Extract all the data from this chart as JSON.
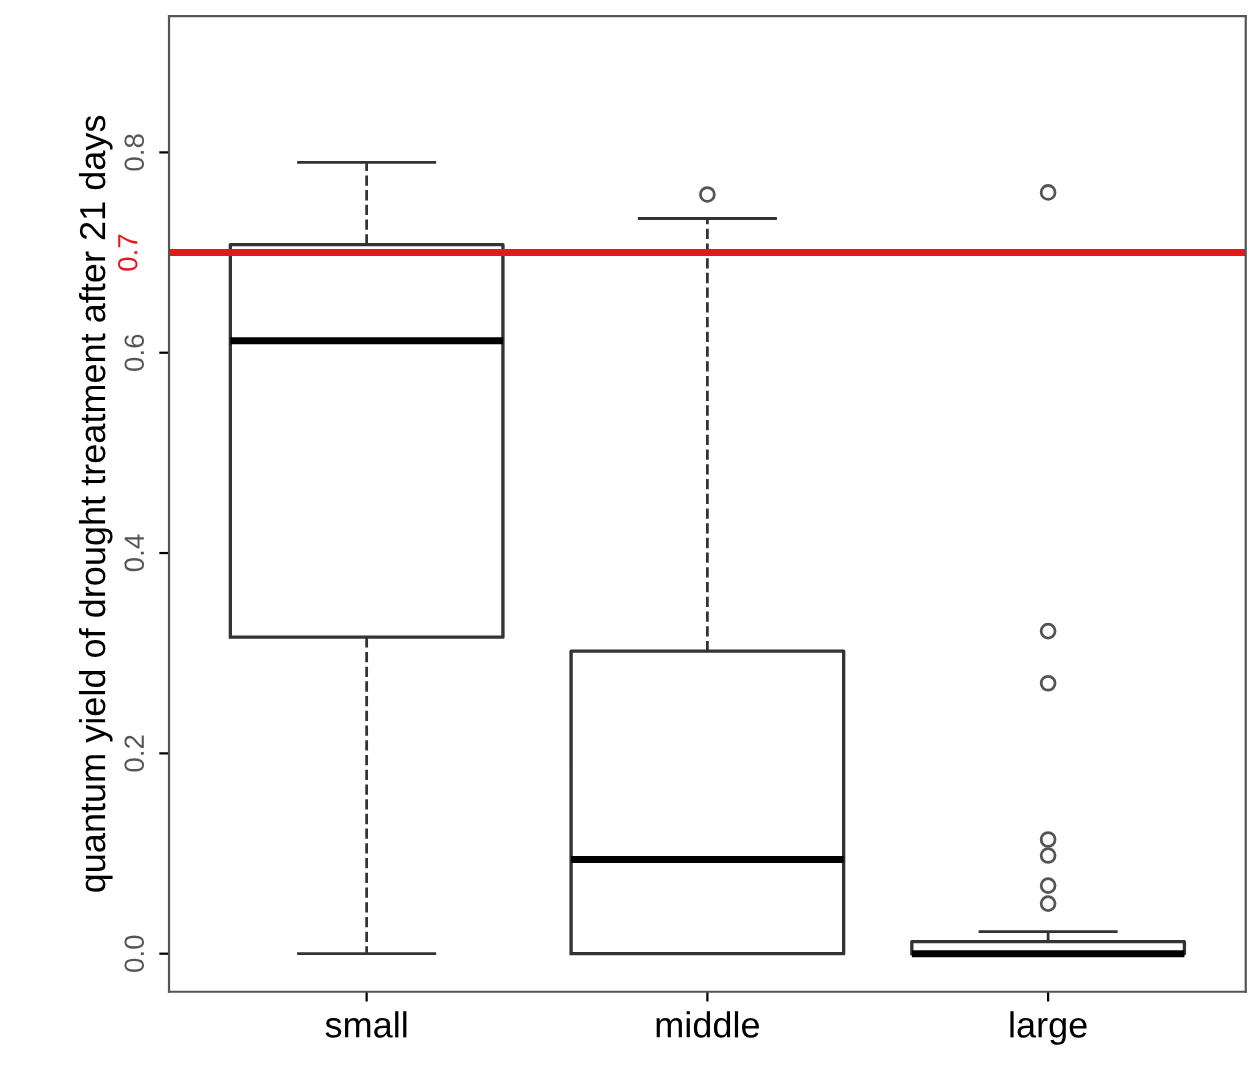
{
  "chart_data": {
    "type": "box",
    "ylabel": "quantum yield of drought treatment after 21 days",
    "categories": [
      "small",
      "middle",
      "large"
    ],
    "boxes": [
      {
        "low": 0.0,
        "q1": 0.316,
        "median": 0.612,
        "q3": 0.708,
        "high": 0.79
      },
      {
        "low": 0.0,
        "q1": 0.0,
        "median": 0.094,
        "q3": 0.302,
        "high": 0.734,
        "outliers": [
          0.758
        ]
      },
      {
        "low": 0.0,
        "q1": 0.0,
        "median": 0.0,
        "q3": 0.012,
        "high": 0.022,
        "outliers": [
          0.76,
          0.322,
          0.27,
          0.114,
          0.098,
          0.068,
          0.05
        ]
      }
    ],
    "ylim": [
      -0.038,
      0.936
    ],
    "yticks": [
      {
        "value": 0,
        "label": "0.0"
      },
      {
        "value": 0.2,
        "label": "0.2"
      },
      {
        "value": 0.4,
        "label": "0.4"
      },
      {
        "value": 0.6,
        "label": "0.6"
      },
      {
        "value": 0.8,
        "label": "0.8"
      }
    ],
    "ref_lines": [
      {
        "axis": "y",
        "value": 0.7,
        "label": "0.7",
        "color": "#e31a1c"
      }
    ],
    "grid": false
  }
}
